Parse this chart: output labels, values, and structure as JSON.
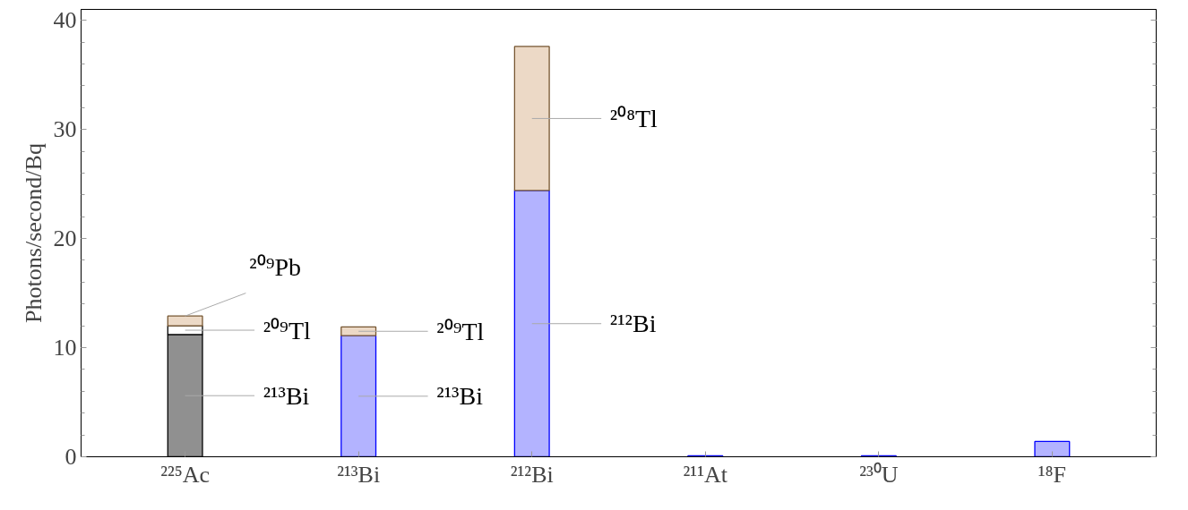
{
  "chart_data": {
    "type": "bar",
    "stacked": true,
    "ylabel": "Photons/second/Bq",
    "categories": [
      "²²⁵Ac",
      "²¹³Bi",
      "²¹²Bi",
      "²¹¹At",
      "²³⁰U",
      "¹⁸F"
    ],
    "series": [
      {
        "colors": [
          "#909090",
          "#b3b3ff",
          "#b3b3ff",
          "#b3b3ff",
          "#b3b3ff",
          "#b3b3ff"
        ],
        "values": [
          11.2,
          11.1,
          24.4,
          0.1,
          0.1,
          1.4
        ]
      },
      {
        "colors": [
          "#ffffff",
          "#ecd9c6",
          "#ecd9c6",
          null,
          null,
          null
        ],
        "values": [
          0.8,
          0.8,
          13.2,
          null,
          null,
          null
        ]
      },
      {
        "colors": [
          "#ecd9c6",
          null,
          null,
          null,
          null,
          null
        ],
        "values": [
          0.9,
          null,
          null,
          null,
          null,
          null
        ]
      }
    ],
    "ylim": [
      0,
      41
    ],
    "yticks": [
      0,
      10,
      20,
      30,
      40
    ],
    "grid": false,
    "annotations": [
      "²¹³Bi",
      {
        "text": "²⁰⁹Tl",
        "x": "²²⁵Ac",
        "y": 11.6
      },
      {
        "text": "²⁰⁹Pb",
        "x": "²²⁵Ac",
        "y": 12.9
      },
      "²¹³Bi",
      {
        "text": "²⁰⁹Tl",
        "x": "²¹³Bi",
        "y": 11.5
      },
      "²¹²Bi",
      "²⁰⁸Tl"
    ]
  }
}
